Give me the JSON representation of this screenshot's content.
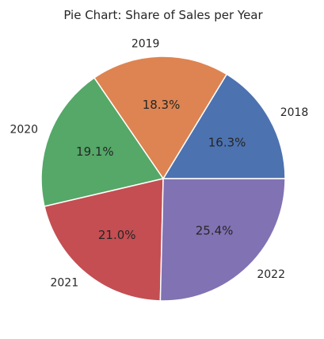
{
  "chart_data": {
    "type": "pie",
    "title": "Pie Chart: Share of Sales per Year",
    "categories": [
      "2018",
      "2019",
      "2020",
      "2021",
      "2022"
    ],
    "values": [
      16.3,
      18.3,
      19.1,
      21.0,
      25.4
    ],
    "value_labels": [
      "16.3%",
      "18.3%",
      "19.1%",
      "21.0%",
      "25.4%"
    ],
    "colors": [
      "#4c72b0",
      "#dd8452",
      "#55a868",
      "#c44e52",
      "#8172b3"
    ],
    "start_angle": 0,
    "direction": "counterclockwise",
    "legend": "none"
  }
}
